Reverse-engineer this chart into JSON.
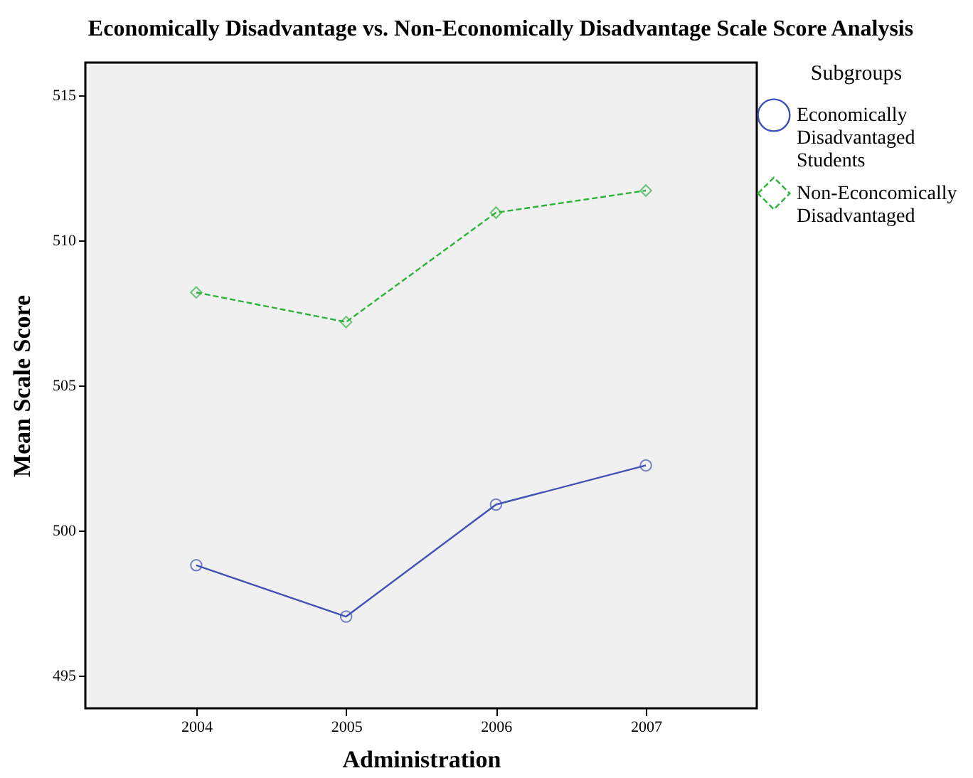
{
  "chart_data": {
    "type": "line",
    "title": "Economically Disadvantage vs. Non-Economically Disadvantage Scale Score Analysis",
    "xlabel": "Administration",
    "ylabel": "Mean Scale Score",
    "legend_title": "Subgroups",
    "categories": [
      "2004",
      "2005",
      "2006",
      "2007"
    ],
    "series": [
      {
        "name": "Economically Disadvantaged Students",
        "color": "#3f51b5",
        "marker": "circle",
        "line_style": "solid",
        "values": [
          498.8,
          497.03,
          500.89,
          502.24
        ]
      },
      {
        "name": "Non-Econcomically Disadvantaged",
        "color": "#2db33a",
        "marker": "diamond",
        "line_style": "dashed",
        "values": [
          508.2,
          507.18,
          510.95,
          511.71
        ]
      }
    ],
    "ylim": [
      493.87,
      516.12
    ],
    "yticks": [
      495,
      500,
      505,
      510,
      515
    ],
    "grid": false,
    "legend": "top right"
  }
}
